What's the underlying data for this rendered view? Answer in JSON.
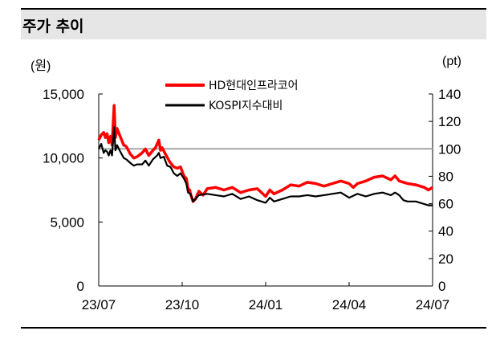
{
  "header": {
    "title": "주가 추이"
  },
  "chart_data": {
    "type": "line",
    "left_unit": "(원)",
    "right_unit": "(pt)",
    "x_ticks": [
      "23/07",
      "23/10",
      "24/01",
      "24/04",
      "24/07"
    ],
    "y_left": {
      "ylim": [
        0,
        15000
      ],
      "ticks": [
        "0",
        "5,000",
        "10,000",
        "15,000"
      ],
      "tick_values": [
        0,
        5000,
        10000,
        15000
      ]
    },
    "y_right": {
      "ylim": [
        0,
        140
      ],
      "ticks": [
        "0",
        "20",
        "40",
        "60",
        "80",
        "100",
        "120",
        "140"
      ],
      "tick_values": [
        0,
        20,
        40,
        60,
        80,
        100,
        120,
        140
      ]
    },
    "reference_line": {
      "axis": "right",
      "value": 100
    },
    "series": [
      {
        "name": "HD현대인프라코어",
        "color": "#ff0000",
        "axis": "left",
        "points": [
          [
            0,
            11400
          ],
          [
            0.03,
            11800
          ],
          [
            0.06,
            12000
          ],
          [
            0.08,
            11600
          ],
          [
            0.1,
            11900
          ],
          [
            0.12,
            11200
          ],
          [
            0.14,
            11700
          ],
          [
            0.16,
            11000
          ],
          [
            0.185,
            14100
          ],
          [
            0.2,
            11600
          ],
          [
            0.22,
            12300
          ],
          [
            0.25,
            11800
          ],
          [
            0.3,
            11000
          ],
          [
            0.33,
            10900
          ],
          [
            0.38,
            10300
          ],
          [
            0.42,
            10000
          ],
          [
            0.46,
            10100
          ],
          [
            0.52,
            10400
          ],
          [
            0.56,
            10700
          ],
          [
            0.6,
            10200
          ],
          [
            0.65,
            10600
          ],
          [
            0.68,
            10800
          ],
          [
            0.7,
            11100
          ],
          [
            0.72,
            11400
          ],
          [
            0.74,
            10600
          ],
          [
            0.76,
            10800
          ],
          [
            0.8,
            10300
          ],
          [
            0.85,
            9700
          ],
          [
            0.9,
            9300
          ],
          [
            0.94,
            9200
          ],
          [
            0.98,
            9300
          ],
          [
            1.02,
            8600
          ],
          [
            1.05,
            8400
          ],
          [
            1.07,
            7600
          ],
          [
            1.09,
            7500
          ],
          [
            1.1,
            7200
          ],
          [
            1.13,
            6600
          ],
          [
            1.16,
            6800
          ],
          [
            1.2,
            7400
          ],
          [
            1.25,
            7100
          ],
          [
            1.3,
            7600
          ],
          [
            1.4,
            7700
          ],
          [
            1.5,
            7500
          ],
          [
            1.6,
            7700
          ],
          [
            1.7,
            7300
          ],
          [
            1.8,
            7500
          ],
          [
            1.9,
            7600
          ],
          [
            2.0,
            7000
          ],
          [
            2.05,
            7500
          ],
          [
            2.1,
            7200
          ],
          [
            2.2,
            7500
          ],
          [
            2.3,
            7900
          ],
          [
            2.4,
            7800
          ],
          [
            2.5,
            8100
          ],
          [
            2.6,
            8000
          ],
          [
            2.7,
            7800
          ],
          [
            2.8,
            8000
          ],
          [
            2.9,
            8200
          ],
          [
            3.0,
            8000
          ],
          [
            3.05,
            7700
          ],
          [
            3.1,
            8000
          ],
          [
            3.2,
            8200
          ],
          [
            3.3,
            8500
          ],
          [
            3.4,
            8600
          ],
          [
            3.5,
            8300
          ],
          [
            3.55,
            8600
          ],
          [
            3.6,
            8200
          ],
          [
            3.7,
            8000
          ],
          [
            3.8,
            7900
          ],
          [
            3.9,
            7700
          ],
          [
            3.95,
            7500
          ],
          [
            4.0,
            7700
          ]
        ]
      },
      {
        "name": "KOSPI지수대비",
        "color": "#000000",
        "axis": "left",
        "points": [
          [
            0,
            10700
          ],
          [
            0.03,
            11100
          ],
          [
            0.06,
            10400
          ],
          [
            0.08,
            10600
          ],
          [
            0.1,
            10500
          ],
          [
            0.12,
            10200
          ],
          [
            0.14,
            10600
          ],
          [
            0.16,
            10200
          ],
          [
            0.185,
            12400
          ],
          [
            0.2,
            10600
          ],
          [
            0.22,
            11000
          ],
          [
            0.25,
            10600
          ],
          [
            0.3,
            10000
          ],
          [
            0.33,
            9900
          ],
          [
            0.38,
            9600
          ],
          [
            0.42,
            9400
          ],
          [
            0.46,
            9500
          ],
          [
            0.52,
            9500
          ],
          [
            0.56,
            9800
          ],
          [
            0.6,
            9400
          ],
          [
            0.65,
            9900
          ],
          [
            0.7,
            10200
          ],
          [
            0.72,
            10400
          ],
          [
            0.74,
            10000
          ],
          [
            0.78,
            10100
          ],
          [
            0.82,
            9400
          ],
          [
            0.86,
            9300
          ],
          [
            0.9,
            8800
          ],
          [
            0.94,
            8600
          ],
          [
            0.98,
            8800
          ],
          [
            1.02,
            8400
          ],
          [
            1.05,
            8000
          ],
          [
            1.07,
            7300
          ],
          [
            1.1,
            7200
          ],
          [
            1.13,
            6600
          ],
          [
            1.16,
            6800
          ],
          [
            1.2,
            7100
          ],
          [
            1.3,
            7200
          ],
          [
            1.4,
            7100
          ],
          [
            1.5,
            7000
          ],
          [
            1.6,
            7200
          ],
          [
            1.7,
            6800
          ],
          [
            1.8,
            7000
          ],
          [
            1.9,
            6700
          ],
          [
            2.0,
            6500
          ],
          [
            2.05,
            6900
          ],
          [
            2.1,
            6600
          ],
          [
            2.2,
            6800
          ],
          [
            2.3,
            7000
          ],
          [
            2.4,
            7000
          ],
          [
            2.5,
            7100
          ],
          [
            2.6,
            7000
          ],
          [
            2.7,
            7100
          ],
          [
            2.8,
            7200
          ],
          [
            2.9,
            7300
          ],
          [
            3.0,
            6900
          ],
          [
            3.1,
            7200
          ],
          [
            3.2,
            7000
          ],
          [
            3.3,
            7200
          ],
          [
            3.4,
            7300
          ],
          [
            3.5,
            7100
          ],
          [
            3.55,
            7300
          ],
          [
            3.6,
            7100
          ],
          [
            3.65,
            6700
          ],
          [
            3.7,
            6600
          ],
          [
            3.8,
            6600
          ],
          [
            3.9,
            6400
          ],
          [
            3.95,
            6300
          ],
          [
            4.0,
            6300
          ]
        ]
      }
    ]
  }
}
